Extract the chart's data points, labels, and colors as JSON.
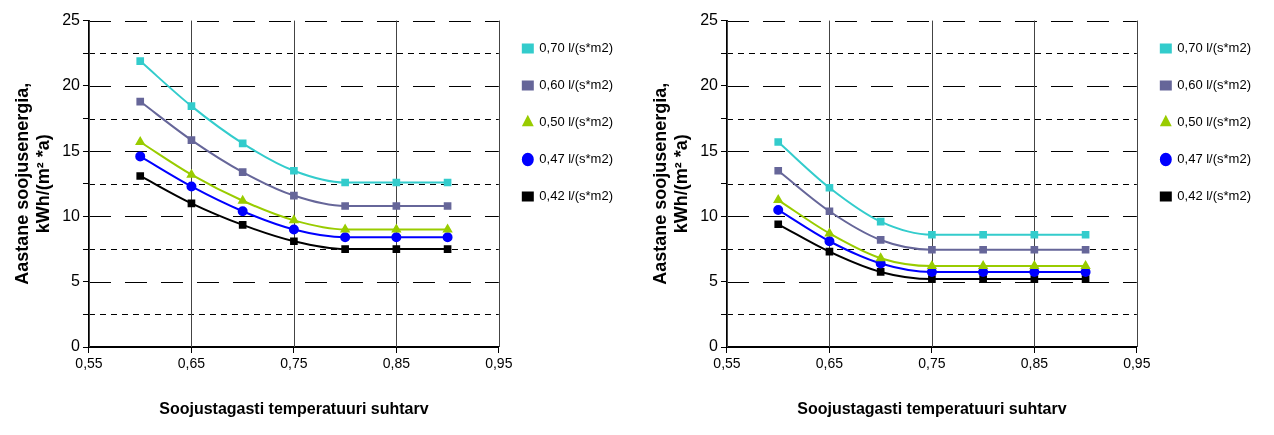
{
  "chart_data": [
    {
      "type": "line",
      "xlabel": "Soojustagasti temperatuuri suhtarv",
      "ylabel": "Aastane soojusenergia,\nkWh/(m² *a)",
      "x": [
        0.6,
        0.65,
        0.7,
        0.75,
        0.8,
        0.85,
        0.9
      ],
      "xlim": [
        0.55,
        0.95
      ],
      "xticks": [
        {
          "value": 0.55,
          "label": "0,55"
        },
        {
          "value": 0.65,
          "label": "0,65"
        },
        {
          "value": 0.75,
          "label": "0,75"
        },
        {
          "value": 0.85,
          "label": "0,85"
        },
        {
          "value": 0.95,
          "label": "0,95"
        }
      ],
      "ylim": [
        0,
        25
      ],
      "yticks": [
        0,
        {
          "value": 2.5,
          "label": null
        },
        5,
        {
          "value": 7.5,
          "label": null
        },
        10,
        {
          "value": 12.5,
          "label": null
        },
        15,
        {
          "value": 17.5,
          "label": null
        },
        20,
        {
          "value": 22.5,
          "label": null
        },
        25
      ],
      "grid": true,
      "legend": "right",
      "line_style": "solid",
      "series": [
        {
          "name": "0,70 l/(s*m2)",
          "color": "#33cccc",
          "marker": "square",
          "values": [
            21.9,
            18.45,
            15.6,
            13.5,
            12.6,
            12.6,
            12.6
          ]
        },
        {
          "name": "0,60 l/(s*m2)",
          "color": "#666699",
          "marker": "square",
          "values": [
            18.8,
            15.85,
            13.4,
            11.6,
            10.8,
            10.8,
            10.8
          ]
        },
        {
          "name": "0,50 l/(s*m2)",
          "color": "#99cc00",
          "marker": "triangle",
          "values": [
            15.7,
            13.2,
            11.2,
            9.7,
            9.0,
            9.0,
            9.0
          ]
        },
        {
          "name": "0,47 l/(s*m2)",
          "color": "#0000ff",
          "marker": "circle",
          "values": [
            14.6,
            12.3,
            10.4,
            9.0,
            8.4,
            8.4,
            8.4
          ]
        },
        {
          "name": "0,42 l/(s*m2)",
          "color": "#000000",
          "marker": "square",
          "values": [
            13.1,
            11.0,
            9.35,
            8.1,
            7.5,
            7.5,
            7.5
          ]
        }
      ]
    },
    {
      "type": "line",
      "xlabel": "Soojustagasti temperatuuri suhtarv",
      "ylabel": "Aastane soojusenergia,\nkWh/(m² *a)",
      "x": [
        0.6,
        0.65,
        0.7,
        0.75,
        0.8,
        0.85,
        0.9
      ],
      "xlim": [
        0.55,
        0.95
      ],
      "xticks": [
        {
          "value": 0.55,
          "label": "0,55"
        },
        {
          "value": 0.65,
          "label": "0,65"
        },
        {
          "value": 0.75,
          "label": "0,75"
        },
        {
          "value": 0.85,
          "label": "0,85"
        },
        {
          "value": 0.95,
          "label": "0,95"
        }
      ],
      "ylim": [
        0,
        25
      ],
      "yticks": [
        0,
        {
          "value": 2.5,
          "label": null
        },
        5,
        {
          "value": 7.5,
          "label": null
        },
        10,
        {
          "value": 12.5,
          "label": null
        },
        15,
        {
          "value": 17.5,
          "label": null
        },
        20,
        {
          "value": 22.5,
          "label": null
        },
        25
      ],
      "grid": true,
      "legend": "right",
      "line_style": "solid",
      "series": [
        {
          "name": "0,70 l/(s*m2)",
          "color": "#33cccc",
          "marker": "square",
          "values": [
            15.7,
            12.2,
            9.6,
            8.6,
            8.6,
            8.6,
            8.6
          ]
        },
        {
          "name": "0,60 l/(s*m2)",
          "color": "#666699",
          "marker": "square",
          "values": [
            13.5,
            10.4,
            8.2,
            7.45,
            7.45,
            7.45,
            7.45
          ]
        },
        {
          "name": "0,50 l/(s*m2)",
          "color": "#99cc00",
          "marker": "triangle",
          "values": [
            11.25,
            8.7,
            6.8,
            6.2,
            6.2,
            6.2,
            6.2
          ]
        },
        {
          "name": "0,47 l/(s*m2)",
          "color": "#0000ff",
          "marker": "circle",
          "values": [
            10.5,
            8.1,
            6.4,
            5.75,
            5.75,
            5.75,
            5.75
          ]
        },
        {
          "name": "0,42 l/(s*m2)",
          "color": "#000000",
          "marker": "square",
          "values": [
            9.4,
            7.3,
            5.75,
            5.2,
            5.2,
            5.2,
            5.2
          ]
        }
      ]
    }
  ]
}
